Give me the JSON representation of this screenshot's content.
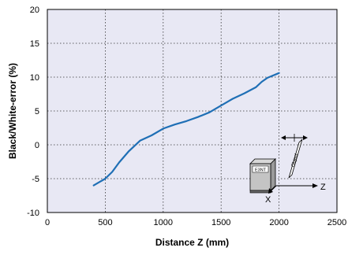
{
  "chart_data": {
    "type": "line",
    "title": "",
    "xlabel": "Distance Z (mm)",
    "ylabel": "Black/White-error (%)",
    "xlim": [
      0,
      2500
    ],
    "ylim": [
      -10,
      20
    ],
    "x_ticks": [
      0,
      500,
      1000,
      1500,
      2000,
      2500
    ],
    "y_ticks": [
      -10,
      -5,
      0,
      5,
      10,
      15,
      20
    ],
    "grid": true,
    "legend": "none",
    "series_color": "#1f6fb5",
    "background_color": "#e8e8f4",
    "series": [
      {
        "x": [
          400,
          500,
          560,
          620,
          700,
          800,
          900,
          1000,
          1100,
          1200,
          1300,
          1400,
          1500,
          1600,
          1700,
          1800,
          1850,
          1900,
          2000
        ],
        "y": [
          -6.0,
          -5.0,
          -4.0,
          -2.6,
          -1.0,
          0.6,
          1.4,
          2.4,
          3.0,
          3.5,
          4.1,
          4.8,
          5.8,
          6.8,
          7.6,
          8.5,
          9.3,
          9.9,
          10.6
        ]
      }
    ],
    "inset": {
      "sensor_label": "E3NT",
      "object_label": "Object",
      "axis_x_label": "X",
      "axis_z_label": "Z"
    }
  }
}
